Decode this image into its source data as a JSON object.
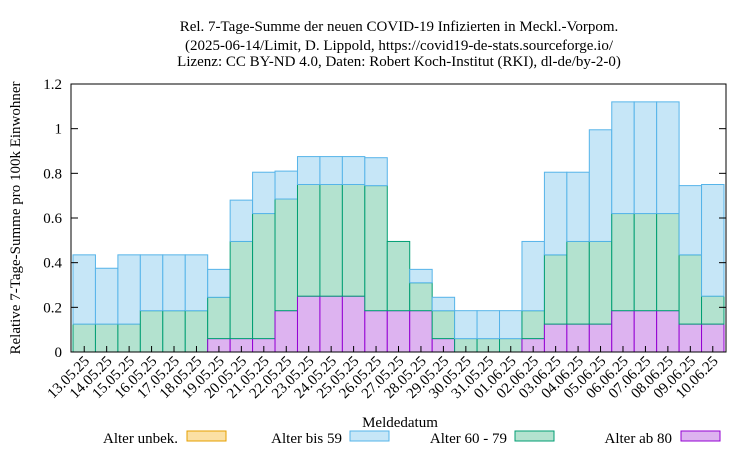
{
  "chart_data": {
    "type": "bar",
    "stacked": true,
    "title_lines": [
      "Rel. 7-Tage-Summe der neuen COVID-19 Infizierten in Meckl.-Vorpom.",
      "(2025-06-14/Limit, D. Lippold, https://covid19-de-stats.sourceforge.io/",
      "Lizenz: CC BY-ND 4.0, Daten: Robert Koch-Institut (RKI), dl-de/by-2-0)"
    ],
    "xlabel": "Meldedatum",
    "ylabel": "Relative 7-Tage-Summe pro 100k Einwohner",
    "ylim": [
      0,
      1.2
    ],
    "yticks": [
      "0",
      "0.2",
      "0.4",
      "0.6",
      "0.8",
      "1",
      "1.2"
    ],
    "grid": false,
    "legend_position": "bottom",
    "categories": [
      "13.05.25",
      "14.05.25",
      "15.05.25",
      "16.05.25",
      "17.05.25",
      "18.05.25",
      "19.05.25",
      "20.05.25",
      "21.05.25",
      "22.05.25",
      "23.05.25",
      "24.05.25",
      "25.05.25",
      "26.05.25",
      "27.05.25",
      "28.05.25",
      "29.05.25",
      "30.05.25",
      "31.05.25",
      "01.06.25",
      "02.06.25",
      "03.06.25",
      "04.06.25",
      "05.06.25",
      "06.06.25",
      "07.06.25",
      "08.06.25",
      "09.06.25",
      "10.06.25"
    ],
    "series": [
      {
        "name": "Alter unbek.",
        "fill": "#fbe0a4",
        "stroke": "#e69f00",
        "values": [
          0,
          0,
          0,
          0,
          0,
          0,
          0,
          0,
          0,
          0,
          0,
          0,
          0,
          0,
          0,
          0,
          0,
          0,
          0,
          0,
          0,
          0,
          0,
          0,
          0,
          0,
          0,
          0,
          0
        ]
      },
      {
        "name": "Alter bis 59",
        "fill": "#c6e6f7",
        "stroke": "#56b4e9",
        "values": [
          0.31,
          0.25,
          0.31,
          0.25,
          0.25,
          0.25,
          0.125,
          0.185,
          0.185,
          0.125,
          0.125,
          0.125,
          0.125,
          0.125,
          0,
          0.06,
          0.06,
          0.125,
          0.125,
          0.125,
          0.31,
          0.37,
          0.31,
          0.5,
          0.5,
          0.5,
          0.5,
          0.31,
          0.5
        ]
      },
      {
        "name": "Alter 60 - 79",
        "fill": "#b3e2cf",
        "stroke": "#009e73",
        "values": [
          0.125,
          0.125,
          0.125,
          0.185,
          0.185,
          0.185,
          0.185,
          0.435,
          0.56,
          0.5,
          0.5,
          0.5,
          0.5,
          0.56,
          0.31,
          0.125,
          0.125,
          0.06,
          0.06,
          0.06,
          0.125,
          0.31,
          0.37,
          0.37,
          0.435,
          0.435,
          0.435,
          0.31,
          0.125
        ]
      },
      {
        "name": "Alter ab 80",
        "fill": "#ddb3f0",
        "stroke": "#9400d3",
        "values": [
          0,
          0,
          0,
          0,
          0,
          0,
          0.06,
          0.06,
          0.06,
          0.185,
          0.25,
          0.25,
          0.25,
          0.185,
          0.185,
          0.185,
          0.06,
          0,
          0,
          0,
          0.06,
          0.125,
          0.125,
          0.125,
          0.185,
          0.185,
          0.185,
          0.125,
          0.125
        ]
      }
    ]
  }
}
